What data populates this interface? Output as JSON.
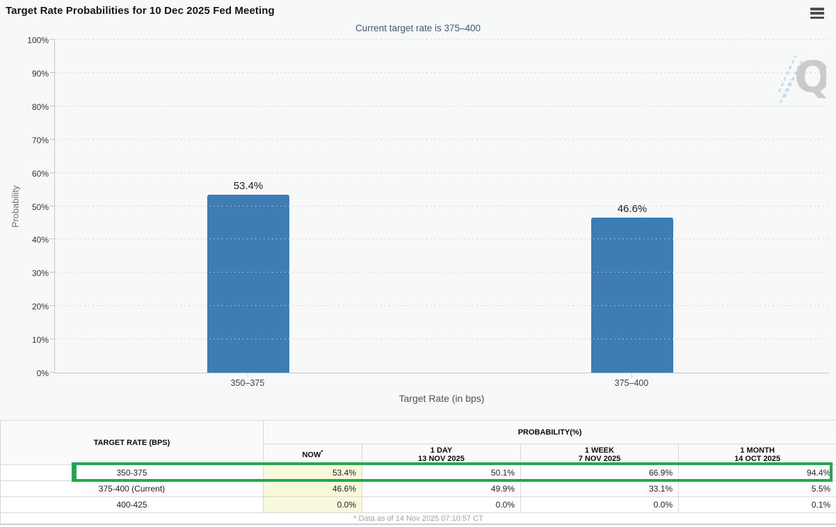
{
  "header": {
    "title": "Target Rate Probabilities for 10 Dec 2025 Fed Meeting",
    "menu_icon": "hamburger-menu"
  },
  "chart": {
    "subtitle": "Current target rate is 375–400",
    "y_axis_label": "Probability",
    "x_axis_label": "Target Rate (in bps)",
    "watermark_letter": "Q"
  },
  "chart_data": {
    "type": "bar",
    "title": "Target Rate Probabilities for 10 Dec 2025 Fed Meeting",
    "subtitle": "Current target rate is 375–400",
    "categories": [
      "350–375",
      "375–400"
    ],
    "values": [
      53.4,
      46.6
    ],
    "value_labels": [
      "53.4%",
      "46.6%"
    ],
    "xlabel": "Target Rate (in bps)",
    "ylabel": "Probability",
    "ylim": [
      0,
      100
    ],
    "y_ticks": [
      "0%",
      "10%",
      "20%",
      "30%",
      "40%",
      "50%",
      "60%",
      "70%",
      "80%",
      "90%",
      "100%"
    ],
    "grid": "horizontal dotted",
    "legend": "none",
    "bar_color": "#3e7cb5"
  },
  "colors": {
    "bar_blue": "#3e7cb5",
    "highlight_green": "#27a551",
    "now_column_yellow": "#f8f8da",
    "subtitle_slate": "#3f5a73"
  },
  "table": {
    "col1_header": "TARGET RATE (BPS)",
    "group_header": "PROBABILITY(%)",
    "columns": [
      {
        "label": "NOW",
        "sup": "*",
        "sub": ""
      },
      {
        "label": "1 DAY",
        "sub": "13 NOV 2025"
      },
      {
        "label": "1 WEEK",
        "sub": "7 NOV 2025"
      },
      {
        "label": "1 MONTH",
        "sub": "14 OCT 2025"
      }
    ],
    "rows": [
      {
        "rate": "350-375",
        "now": "53.4%",
        "day": "50.1%",
        "week": "66.9%",
        "month": "94.4%",
        "highlighted": true
      },
      {
        "rate": "375-400 (Current)",
        "now": "46.6%",
        "day": "49.9%",
        "week": "33.1%",
        "month": "5.5%",
        "highlighted": false
      },
      {
        "rate": "400-425",
        "now": "0.0%",
        "day": "0.0%",
        "week": "0.0%",
        "month": "0.1%",
        "highlighted": false
      }
    ],
    "footnote": "* Data as of 14 Nov 2025 07:10:57 CT"
  }
}
